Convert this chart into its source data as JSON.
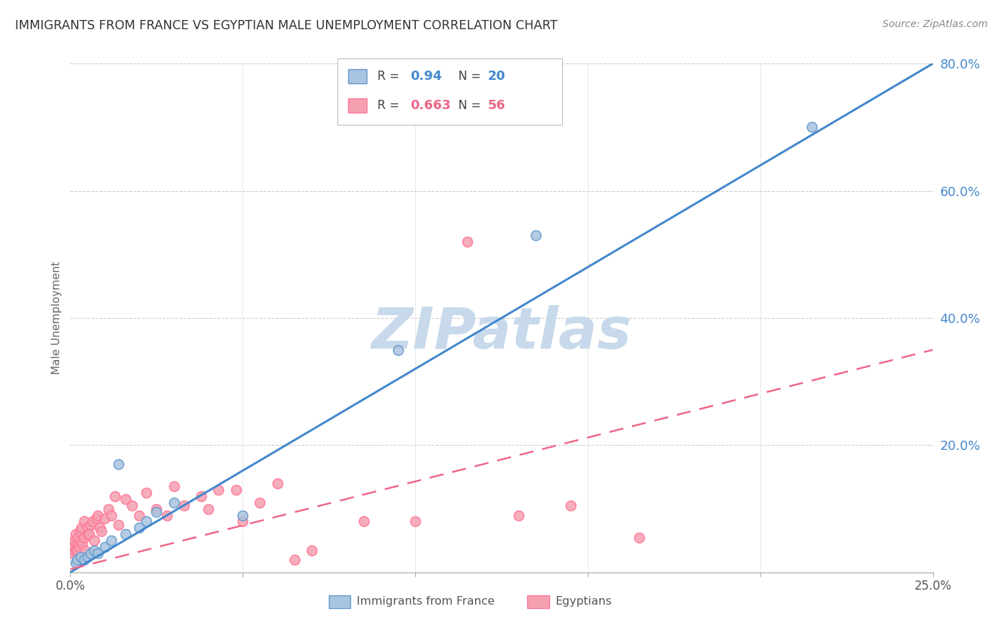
{
  "title": "IMMIGRANTS FROM FRANCE VS EGYPTIAN MALE UNEMPLOYMENT CORRELATION CHART",
  "source": "Source: ZipAtlas.com",
  "ylabel": "Male Unemployment",
  "blue_R": 0.94,
  "blue_N": 20,
  "pink_R": 0.663,
  "pink_N": 56,
  "legend_label_blue": "Immigrants from France",
  "legend_label_pink": "Egyptians",
  "blue_color": "#A8C4E0",
  "pink_color": "#F4A0B0",
  "blue_edge_color": "#6699CC",
  "pink_edge_color": "#FF7799",
  "blue_line_color": "#4488CC",
  "pink_line_color": "#EE6688",
  "watermark": "ZIPatlas",
  "watermark_color_r": 0.78,
  "watermark_color_g": 0.85,
  "watermark_color_b": 0.92,
  "xlim": [
    0.0,
    25.0
  ],
  "ylim": [
    0.0,
    80.0
  ],
  "blue_line_x": [
    0.0,
    25.0
  ],
  "blue_line_y": [
    0.0,
    80.0
  ],
  "pink_line_x": [
    0.0,
    25.0
  ],
  "pink_line_y": [
    0.5,
    35.0
  ],
  "blue_dots": [
    [
      0.15,
      1.5
    ],
    [
      0.2,
      2.0
    ],
    [
      0.3,
      2.5
    ],
    [
      0.4,
      2.0
    ],
    [
      0.5,
      2.5
    ],
    [
      0.6,
      3.0
    ],
    [
      0.7,
      3.5
    ],
    [
      0.8,
      3.0
    ],
    [
      1.0,
      4.0
    ],
    [
      1.2,
      5.0
    ],
    [
      1.4,
      17.0
    ],
    [
      1.6,
      6.0
    ],
    [
      2.0,
      7.0
    ],
    [
      2.2,
      8.0
    ],
    [
      2.5,
      9.5
    ],
    [
      3.0,
      11.0
    ],
    [
      5.0,
      9.0
    ],
    [
      9.5,
      35.0
    ],
    [
      13.5,
      53.0
    ],
    [
      21.5,
      70.0
    ]
  ],
  "pink_dots": [
    [
      0.05,
      3.5
    ],
    [
      0.07,
      4.5
    ],
    [
      0.08,
      3.0
    ],
    [
      0.1,
      4.0
    ],
    [
      0.12,
      5.0
    ],
    [
      0.15,
      3.5
    ],
    [
      0.15,
      6.0
    ],
    [
      0.2,
      4.5
    ],
    [
      0.2,
      3.5
    ],
    [
      0.22,
      5.5
    ],
    [
      0.25,
      4.0
    ],
    [
      0.28,
      6.5
    ],
    [
      0.3,
      5.0
    ],
    [
      0.32,
      7.0
    ],
    [
      0.35,
      4.5
    ],
    [
      0.4,
      5.5
    ],
    [
      0.4,
      8.0
    ],
    [
      0.42,
      3.5
    ],
    [
      0.5,
      7.0
    ],
    [
      0.5,
      6.0
    ],
    [
      0.55,
      6.0
    ],
    [
      0.6,
      7.5
    ],
    [
      0.65,
      8.0
    ],
    [
      0.7,
      5.0
    ],
    [
      0.75,
      8.5
    ],
    [
      0.8,
      9.0
    ],
    [
      0.85,
      7.0
    ],
    [
      0.9,
      6.5
    ],
    [
      1.0,
      8.5
    ],
    [
      1.1,
      10.0
    ],
    [
      1.2,
      9.0
    ],
    [
      1.3,
      12.0
    ],
    [
      1.4,
      7.5
    ],
    [
      1.6,
      11.5
    ],
    [
      1.8,
      10.5
    ],
    [
      2.0,
      9.0
    ],
    [
      2.2,
      12.5
    ],
    [
      2.5,
      10.0
    ],
    [
      2.8,
      9.0
    ],
    [
      3.0,
      13.5
    ],
    [
      3.3,
      10.5
    ],
    [
      3.8,
      12.0
    ],
    [
      4.0,
      10.0
    ],
    [
      4.3,
      13.0
    ],
    [
      4.8,
      13.0
    ],
    [
      5.0,
      8.0
    ],
    [
      5.5,
      11.0
    ],
    [
      6.0,
      14.0
    ],
    [
      6.5,
      2.0
    ],
    [
      7.0,
      3.5
    ],
    [
      8.5,
      8.0
    ],
    [
      10.0,
      8.0
    ],
    [
      11.5,
      52.0
    ],
    [
      13.0,
      9.0
    ],
    [
      14.5,
      10.5
    ],
    [
      16.5,
      5.5
    ]
  ]
}
